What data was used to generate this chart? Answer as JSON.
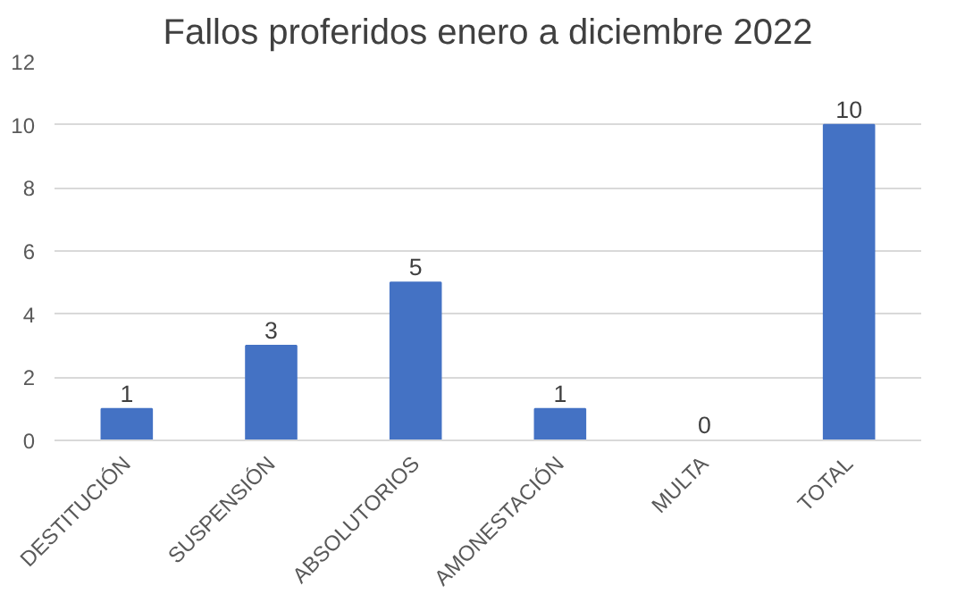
{
  "chart_data": {
    "type": "bar",
    "title": "Fallos proferidos enero a diciembre 2022",
    "categories": [
      "DESTITUCIÓN",
      "SUSPENSIÓN",
      "ABSOLUTORIOS",
      "AMONESTACIÓN",
      "MULTA",
      "TOTAL"
    ],
    "values": [
      1,
      3,
      5,
      1,
      0,
      10
    ],
    "color": "#4472c4",
    "ylim": [
      0,
      12
    ],
    "yticks": [
      0,
      2,
      4,
      6,
      8,
      10,
      12
    ],
    "grid": "y",
    "data_labels": true
  }
}
